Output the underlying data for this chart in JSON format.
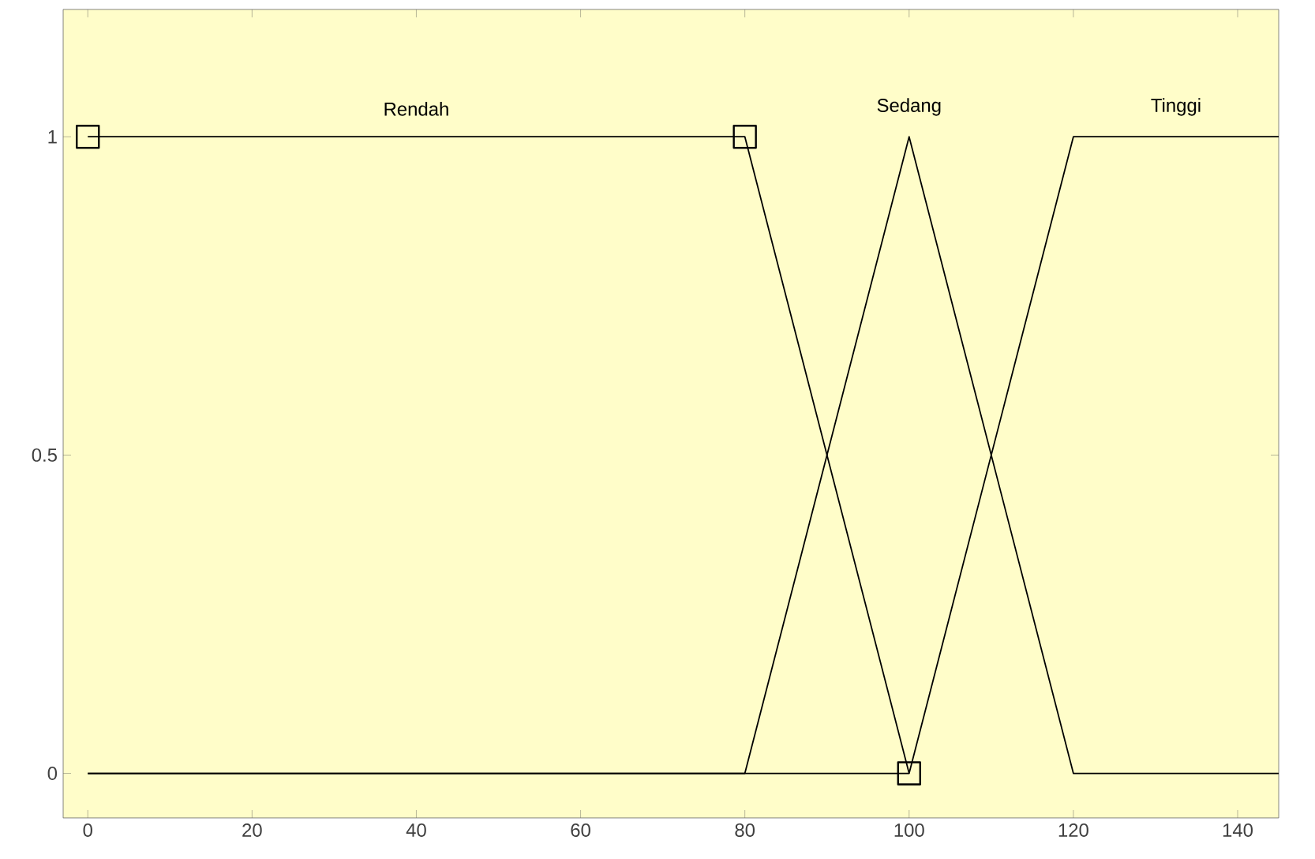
{
  "chart_data": {
    "type": "line",
    "series": [
      {
        "name": "Rendah",
        "color": "#000000",
        "marker": "square",
        "x": [
          0,
          80,
          100
        ],
        "values": [
          1,
          1,
          0
        ]
      },
      {
        "name": "Sedang",
        "color": "#000000",
        "marker": "none",
        "x": [
          0,
          80,
          100,
          120,
          145
        ],
        "values": [
          0,
          0,
          1,
          0,
          0
        ]
      },
      {
        "name": "Tinggi",
        "color": "#000000",
        "marker": "none",
        "x": [
          0,
          100,
          120,
          145
        ],
        "values": [
          0,
          0,
          1,
          1
        ]
      }
    ],
    "xlim": [
      -3,
      145
    ],
    "ylim": [
      -0.07,
      1.2
    ],
    "xticks": [
      0,
      20,
      40,
      60,
      80,
      100,
      120,
      140
    ],
    "yticks": [
      0,
      0.5,
      1
    ],
    "line_style": "solid",
    "grid": false,
    "legend": false
  }
}
